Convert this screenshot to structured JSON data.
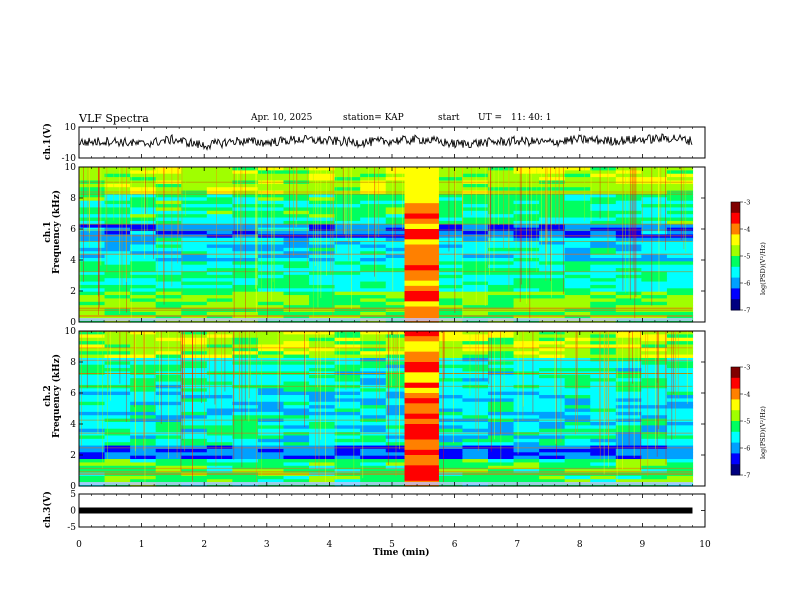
{
  "header": {
    "title": "VLF Spectra",
    "date": "Apr. 10, 2025",
    "station": "station= KAP",
    "start_label": "start",
    "ut_label": "UT =",
    "start_time": "11: 40: 1"
  },
  "colors": {
    "waveform": "#000000",
    "colormap": [
      "#000080",
      "#0000ff",
      "#00a0ff",
      "#00ffff",
      "#00ff60",
      "#a0ff00",
      "#ffff00",
      "#ff8000",
      "#ff0000",
      "#800000"
    ]
  },
  "chart_data": [
    {
      "type": "line",
      "panel": "ch1-waveform",
      "ylabel": "ch.1(V)",
      "ylim": [
        -10,
        10
      ],
      "y_ticks": [
        "10",
        "-10"
      ],
      "xlim": [
        0,
        10
      ],
      "x": [
        0,
        0.5,
        1,
        1.5,
        2,
        2.5,
        3,
        3.5,
        4,
        4.5,
        5,
        5.5,
        6,
        6.5,
        7,
        7.5,
        8,
        8.5,
        9,
        9.5,
        9.8
      ],
      "values": [
        0,
        1,
        -1,
        2,
        -2,
        1,
        0,
        2,
        1,
        0,
        1,
        2,
        -1,
        0,
        1,
        0,
        2,
        1,
        2,
        3,
        1
      ]
    },
    {
      "type": "heatmap",
      "panel": "ch1-spectrogram",
      "ylabel": "ch.1\nFrequency (kHz)",
      "ylim": [
        0,
        10
      ],
      "xlim": [
        0,
        10
      ],
      "y_ticks": [
        "0",
        "2",
        "4",
        "6",
        "8",
        "10"
      ],
      "colorbar": {
        "label": "log(PSD)(V²/Hz)",
        "range": [
          -7,
          -3
        ],
        "ticks": [
          "-3",
          "-4",
          "-5",
          "-6",
          "-7"
        ]
      },
      "feature_time_range_min": [
        5.2,
        5.75
      ],
      "data_end_min": 9.8
    },
    {
      "type": "heatmap",
      "panel": "ch2-spectrogram",
      "ylabel": "ch.2\nFrequency (kHz)",
      "ylim": [
        0,
        10
      ],
      "xlim": [
        0,
        10
      ],
      "y_ticks": [
        "0",
        "2",
        "4",
        "6",
        "8",
        "10"
      ],
      "colorbar": {
        "label": "log(PSD)(V²/Hz)",
        "range": [
          -7,
          -3
        ],
        "ticks": [
          "-3",
          "-4",
          "-5",
          "-6",
          "-7"
        ]
      },
      "feature_time_range_min": [
        5.2,
        5.75
      ],
      "data_end_min": 9.8
    },
    {
      "type": "line",
      "panel": "ch3-waveform",
      "ylabel": "ch.3(V)",
      "ylim": [
        -5,
        5
      ],
      "y_ticks": [
        "5",
        "0",
        "-5"
      ],
      "xlim": [
        0,
        10
      ],
      "x": [
        0,
        9.8
      ],
      "values": [
        0,
        0
      ]
    }
  ],
  "x_axis": {
    "label": "Time (min)",
    "ticks": [
      "0",
      "1",
      "2",
      "3",
      "4",
      "5",
      "6",
      "7",
      "8",
      "9",
      "10"
    ]
  }
}
